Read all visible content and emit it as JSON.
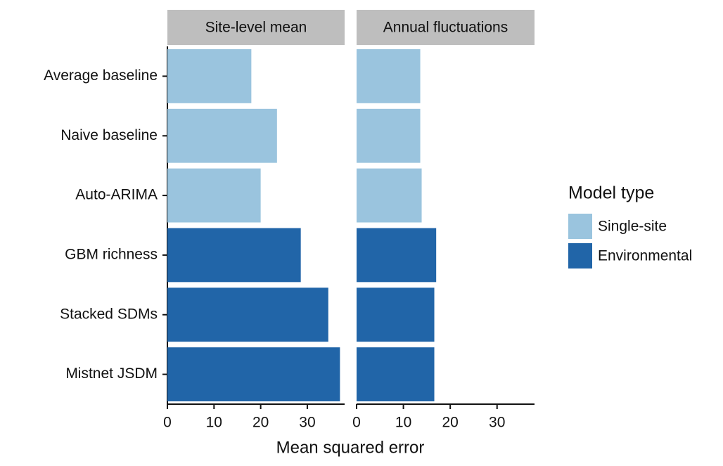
{
  "chart_data": {
    "type": "bar",
    "orientation": "horizontal",
    "categories": [
      "Average baseline",
      "Naive baseline",
      "Auto-ARIMA",
      "GBM richness",
      "Stacked SDMs",
      "Mistnet JSDM"
    ],
    "xlabel": "Mean squared error",
    "legend_title": "Model type",
    "series": [
      {
        "name": "Single-site",
        "color": "#9ac4de"
      },
      {
        "name": "Environmental",
        "color": "#2165a8"
      }
    ],
    "xlim": [
      0,
      38
    ],
    "xticks": [
      0,
      10,
      20,
      30
    ],
    "facets": [
      {
        "title": "Site-level mean",
        "series": [
          {
            "values": [
              18,
              23.5,
              20,
              null,
              null,
              null
            ]
          },
          {
            "values": [
              null,
              null,
              null,
              28.6,
              34.5,
              37
            ]
          }
        ]
      },
      {
        "title": "Annual fluctuations",
        "series": [
          {
            "values": [
              13.6,
              13.6,
              13.9,
              null,
              null,
              null
            ]
          },
          {
            "values": [
              null,
              null,
              null,
              17,
              16.6,
              16.6
            ]
          }
        ]
      }
    ]
  }
}
